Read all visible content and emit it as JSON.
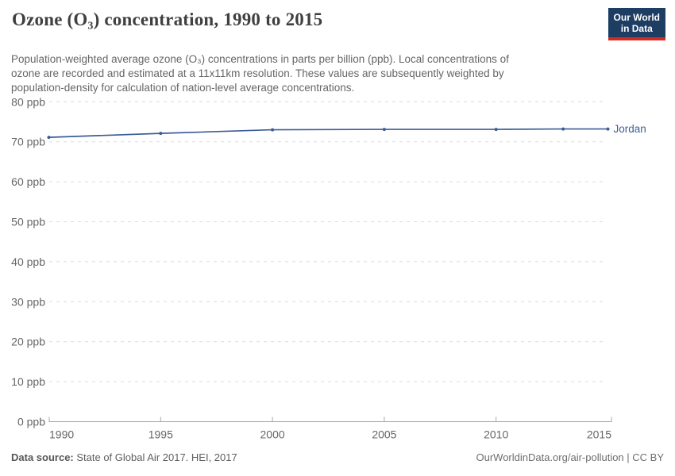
{
  "header": {
    "title": "Ozone (O₃) concentration, 1990 to 2015",
    "logo": {
      "line1": "Our World",
      "line2": "in Data"
    }
  },
  "subtitle": {
    "lines": [
      "Population-weighted average ozone (O₃) concentrations in parts per billion (ppb). Local concentrations of",
      "ozone are recorded and estimated at a 11x11km resolution. These values are subsequently weighted by",
      "population-density for calculation of nation-level average concentrations."
    ]
  },
  "chart_data": {
    "type": "line",
    "title": "Ozone (O₃) concentration, 1990 to 2015",
    "series": [
      {
        "name": "Jordan",
        "x": [
          1990,
          1995,
          2000,
          2005,
          2010,
          2013,
          2015
        ],
        "values": [
          71.1,
          72.1,
          73.0,
          73.1,
          73.1,
          73.2,
          73.2
        ],
        "color": "#3d5c97"
      }
    ],
    "xlim": [
      1990,
      2015
    ],
    "ylim": [
      0,
      80
    ],
    "x_ticks": [
      1990,
      1995,
      2000,
      2005,
      2010,
      2015
    ],
    "y_ticks": [
      0,
      10,
      20,
      30,
      40,
      50,
      60,
      70,
      80
    ],
    "y_tick_suffix": " ppb",
    "grid": "horizontal-dashed",
    "legend_position": "end-of-line-label",
    "end_label": "Jordan"
  },
  "footer": {
    "source_label": "Data source:",
    "source_text": " State of Global Air 2017. HEI, 2017",
    "right_text": "OurWorldinData.org/air-pollution | CC BY"
  },
  "colors": {
    "accent_line": "#3d5c97",
    "grid": "#dcdcdc",
    "axis": "#a8a8a8",
    "tick_text": "#666666",
    "title_text": "#3f3f3f",
    "logo_bg": "#1d3d63",
    "logo_red": "#d42b21"
  }
}
